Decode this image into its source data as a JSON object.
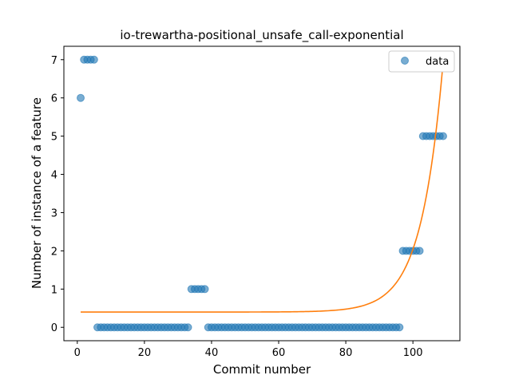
{
  "chart_data": {
    "type": "scatter",
    "title": "io-trewartha-positional_unsafe_call-exponential",
    "xlabel": "Commit number",
    "ylabel": "Number of instance of a feature",
    "xlim": [
      -4,
      114
    ],
    "ylim": [
      -0.35,
      7.35
    ],
    "xticks": [
      0,
      20,
      40,
      60,
      80,
      100
    ],
    "yticks": [
      0,
      1,
      2,
      3,
      4,
      5,
      6,
      7
    ],
    "grid": false,
    "legend_position": "top-right",
    "colors": {
      "data": "#1f77b4",
      "fit": "#ff7f0e"
    },
    "series": [
      {
        "name": "data",
        "kind": "scatter",
        "x": [
          1,
          2,
          3,
          4,
          5,
          6,
          7,
          8,
          9,
          10,
          11,
          12,
          13,
          14,
          15,
          16,
          17,
          18,
          19,
          20,
          21,
          22,
          23,
          24,
          25,
          26,
          27,
          28,
          29,
          30,
          31,
          32,
          33,
          34,
          35,
          36,
          37,
          38,
          39,
          40,
          41,
          42,
          43,
          44,
          45,
          46,
          47,
          48,
          49,
          50,
          51,
          52,
          53,
          54,
          55,
          56,
          57,
          58,
          59,
          60,
          61,
          62,
          63,
          64,
          65,
          66,
          67,
          68,
          69,
          70,
          71,
          72,
          73,
          74,
          75,
          76,
          77,
          78,
          79,
          80,
          81,
          82,
          83,
          84,
          85,
          86,
          87,
          88,
          89,
          90,
          91,
          92,
          93,
          94,
          95,
          96,
          97,
          98,
          99,
          100,
          101,
          102,
          103,
          104,
          105,
          106,
          107,
          108,
          109
        ],
        "y": [
          6,
          7,
          7,
          7,
          7,
          0,
          0,
          0,
          0,
          0,
          0,
          0,
          0,
          0,
          0,
          0,
          0,
          0,
          0,
          0,
          0,
          0,
          0,
          0,
          0,
          0,
          0,
          0,
          0,
          0,
          0,
          0,
          0,
          1,
          1,
          1,
          1,
          1,
          0,
          0,
          0,
          0,
          0,
          0,
          0,
          0,
          0,
          0,
          0,
          0,
          0,
          0,
          0,
          0,
          0,
          0,
          0,
          0,
          0,
          0,
          0,
          0,
          0,
          0,
          0,
          0,
          0,
          0,
          0,
          0,
          0,
          0,
          0,
          0,
          0,
          0,
          0,
          0,
          0,
          0,
          0,
          0,
          0,
          0,
          0,
          0,
          0,
          0,
          0,
          0,
          0,
          0,
          0,
          0,
          0,
          0,
          2,
          2,
          2,
          2,
          2,
          2,
          5,
          5,
          5,
          5,
          5,
          5,
          5
        ]
      },
      {
        "kind": "line",
        "model": {
          "type": "exponential",
          "a": 3.5e-07,
          "b": 0.1536,
          "c": 0.4
        },
        "x_range": [
          1,
          109
        ]
      }
    ],
    "legend": [
      "data"
    ]
  }
}
